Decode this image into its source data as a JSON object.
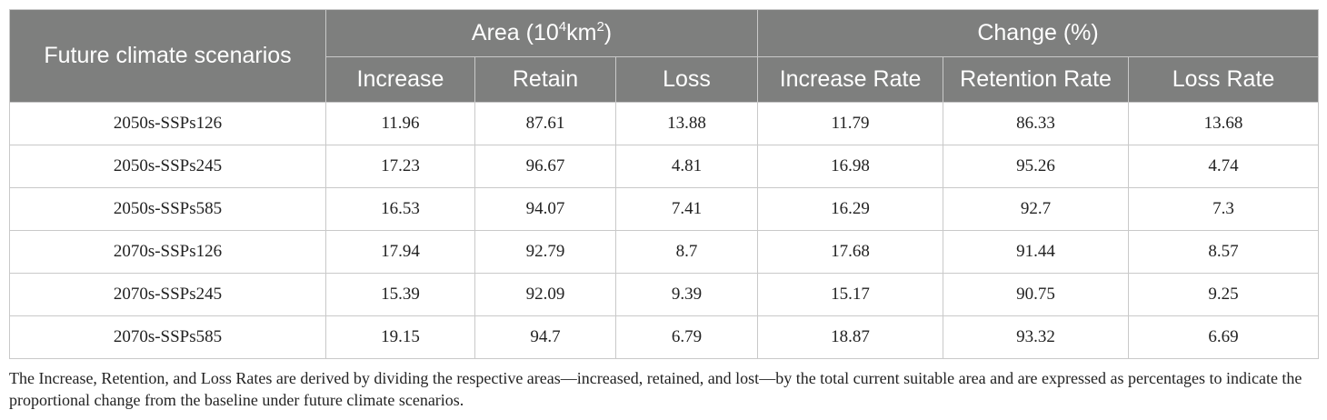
{
  "header": {
    "scenario_col": "Future climate scenarios",
    "group_area_prefix": "Area (10",
    "group_area_sup1": "4",
    "group_area_mid": "km",
    "group_area_sup2": "2",
    "group_area_suffix": ")",
    "group_change": "Change (%)",
    "sub": [
      "Increase",
      "Retain",
      "Loss",
      "Increase Rate",
      "Retention Rate",
      "Loss Rate"
    ]
  },
  "rows": [
    [
      "2050s-SSPs126",
      "11.96",
      "87.61",
      "13.88",
      "11.79",
      "86.33",
      "13.68"
    ],
    [
      "2050s-SSPs245",
      "17.23",
      "96.67",
      "4.81",
      "16.98",
      "95.26",
      "4.74"
    ],
    [
      "2050s-SSPs585",
      "16.53",
      "94.07",
      "7.41",
      "16.29",
      "92.7",
      "7.3"
    ],
    [
      "2070s-SSPs126",
      "17.94",
      "92.79",
      "8.7",
      "17.68",
      "91.44",
      "8.57"
    ],
    [
      "2070s-SSPs245",
      "15.39",
      "92.09",
      "9.39",
      "15.17",
      "90.75",
      "9.25"
    ],
    [
      "2070s-SSPs585",
      "19.15",
      "94.7",
      "6.79",
      "18.87",
      "93.32",
      "6.69"
    ]
  ],
  "footnote": "The Increase, Retention, and Loss Rates are derived by dividing the respective areas—increased, retained, and lost—by the total current suitable area and are expressed as percentages to indicate the proportional change from the baseline under future climate scenarios."
}
